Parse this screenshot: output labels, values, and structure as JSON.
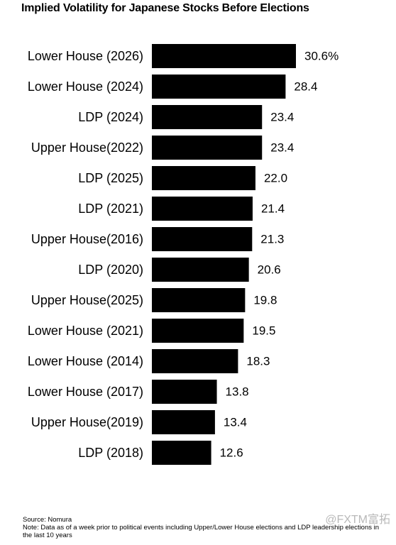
{
  "title": "Implied Volatility for Japanese Stocks Before Elections",
  "footer": {
    "source": "Source: Nomura",
    "note": "Note: Data as of a week prior to political events including Upper/Lower House elections and LDP leadership elections in the last 10 years"
  },
  "watermark": "@FXTM富拓",
  "colors": {
    "bar": "#000000",
    "background": "#ffffff",
    "text": "#000000",
    "watermark": "#b9b9b9"
  },
  "chart_data": {
    "type": "bar",
    "orientation": "horizontal",
    "title": "Implied Volatility for Japanese Stocks Before Elections",
    "xlabel": "",
    "ylabel": "",
    "categories": [
      "Lower House (2026)",
      "Lower House (2024)",
      "LDP (2024)",
      "Upper House(2022)",
      "LDP (2025)",
      "LDP (2021)",
      "Upper House(2016)",
      "LDP (2020)",
      "Upper House(2025)",
      "Lower House (2021)",
      "Lower House (2014)",
      "Lower House (2017)",
      "Upper House(2019)",
      "LDP (2018)"
    ],
    "values": [
      30.6,
      28.4,
      23.4,
      23.4,
      22.0,
      21.4,
      21.3,
      20.6,
      19.8,
      19.5,
      18.3,
      13.8,
      13.4,
      12.6
    ],
    "value_labels": [
      "30.6%",
      "28.4",
      "23.4",
      "23.4",
      "22.0",
      "21.4",
      "21.3",
      "20.6",
      "19.8",
      "19.5",
      "18.3",
      "13.8",
      "13.4",
      "12.6"
    ],
    "unit": "%",
    "xlim": [
      0,
      30.6
    ],
    "grid": false,
    "legend": "none"
  }
}
